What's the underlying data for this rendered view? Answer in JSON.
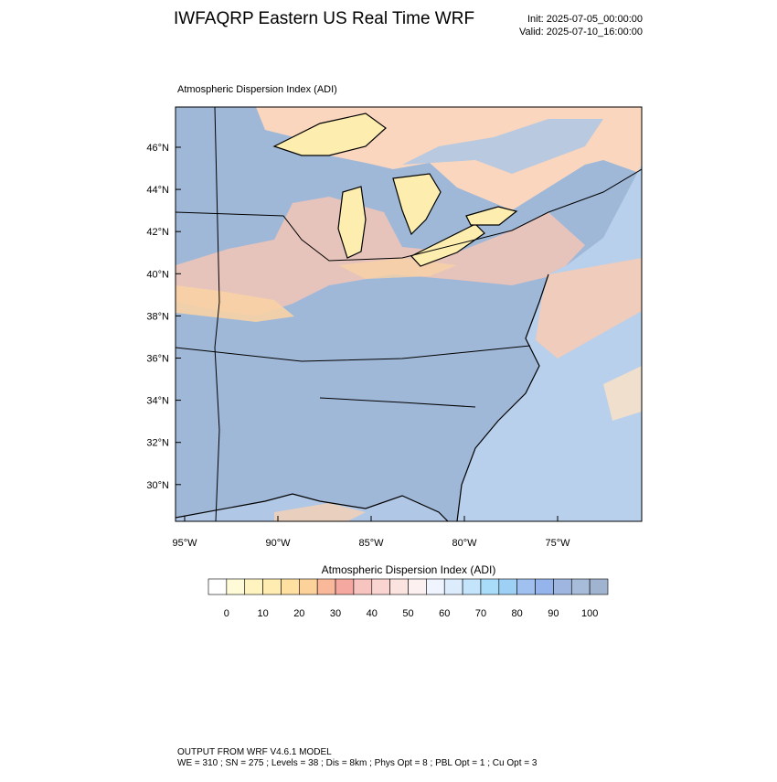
{
  "header": {
    "title": "IWFAQRP Eastern US Real Time WRF",
    "init": "Init: 2025-07-05_00:00:00",
    "valid": "Valid: 2025-07-10_16:00:00"
  },
  "map": {
    "subtitle": "Atmospheric Dispersion Index   (ADI)",
    "lat_labels": [
      "46°N",
      "44°N",
      "42°N",
      "40°N",
      "38°N",
      "36°N",
      "34°N",
      "32°N",
      "30°N"
    ],
    "lon_labels": [
      "95°W",
      "90°W",
      "85°W",
      "80°W",
      "75°W"
    ]
  },
  "colorbar": {
    "title": "Atmospheric Dispersion Index  (ADI)",
    "labels": [
      "0",
      "10",
      "20",
      "30",
      "40",
      "50",
      "60",
      "70",
      "80",
      "90",
      "100"
    ],
    "colors": [
      "#ffffff",
      "#fffbd8",
      "#fff4c0",
      "#ffecb0",
      "#ffe0a0",
      "#fdd29a",
      "#f9b89a",
      "#f5a8a0",
      "#f7c4c0",
      "#f9d4d0",
      "#fbe4e0",
      "#fdf0f0",
      "#f0f4ff",
      "#dcecfc",
      "#c4e4fb",
      "#a8dcf8",
      "#9ed0f5",
      "#a0c0f0",
      "#96b4ec",
      "#9eb6e0",
      "#a6bcd8",
      "#a0b4d0"
    ]
  },
  "footer": {
    "line1": "OUTPUT FROM WRF V4.6.1 MODEL",
    "line2": "WE = 310 ; SN = 275 ; Levels = 38 ; Dis = 8km ; Phys Opt = 8 ; PBL Opt = 1 ; Cu Opt = 3"
  }
}
